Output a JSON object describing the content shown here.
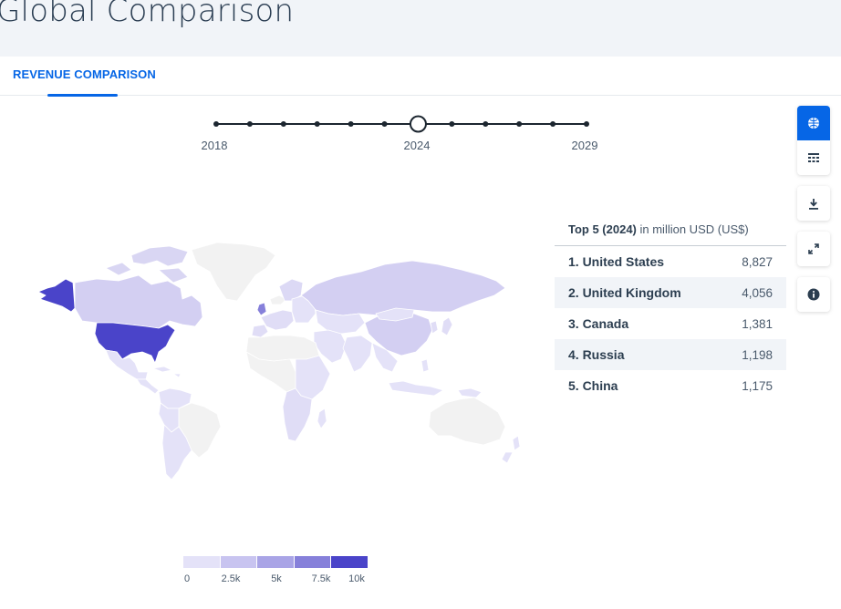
{
  "page": {
    "title": "Global Comparison"
  },
  "tabs": [
    {
      "label": "REVENUE COMPARISON",
      "active": true
    }
  ],
  "timeline": {
    "years": [
      2018,
      2019,
      2020,
      2021,
      2022,
      2023,
      2024,
      2025,
      2026,
      2027,
      2028,
      2029
    ],
    "selected_year": 2024,
    "labels": {
      "start": "2018",
      "selected": "2024",
      "end": "2029"
    }
  },
  "toolbar": {
    "buttons": [
      {
        "icon": "globe-icon",
        "active": true
      },
      {
        "icon": "table-icon",
        "active": false
      },
      {
        "icon": "download-icon",
        "active": false
      },
      {
        "icon": "fullscreen-icon",
        "active": false
      },
      {
        "icon": "info-icon",
        "active": false
      }
    ]
  },
  "top5": {
    "heading_bold": "Top 5 (2024)",
    "heading_rest": " in million USD (US$)",
    "rows": [
      {
        "rank_name": "1. United States",
        "value": "8,827"
      },
      {
        "rank_name": "2. United Kingdom",
        "value": "4,056"
      },
      {
        "rank_name": "3. Canada",
        "value": "1,381"
      },
      {
        "rank_name": "4. Russia",
        "value": "1,198"
      },
      {
        "rank_name": "5. China",
        "value": "1,175"
      }
    ]
  },
  "legend": {
    "ticks": [
      "0",
      "2.5k",
      "5k",
      "7.5k",
      "10k"
    ],
    "colors": [
      "#e4e2f8",
      "#c8c4f0",
      "#a9a4e6",
      "#8680da",
      "#4a44c9"
    ]
  },
  "colors": {
    "accent": "#0666e6",
    "map_highest": "#4a44c9",
    "map_light": "#d7d3f3",
    "map_nodata": "#f2f2f2"
  }
}
